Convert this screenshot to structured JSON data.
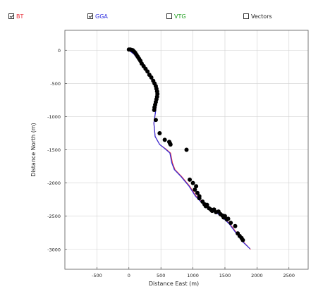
{
  "toggles": [
    {
      "label": "BT",
      "checked": true,
      "color": "#e8303a"
    },
    {
      "label": "GGA",
      "checked": true,
      "color": "#3030e0"
    },
    {
      "label": "VTG",
      "checked": false,
      "color": "#22a022"
    },
    {
      "label": "Vectors",
      "checked": false,
      "color": "#222222"
    }
  ],
  "chart_data": {
    "type": "scatter",
    "title": "",
    "xlabel": "Distance East (m)",
    "ylabel": "Distance North (m)",
    "xlim": [
      -1000,
      2800
    ],
    "ylim": [
      -3300,
      300
    ],
    "xticks": [
      -500,
      0,
      500,
      1000,
      1500,
      2000,
      2500
    ],
    "yticks": [
      0,
      -500,
      -1000,
      -1500,
      -2000,
      -2500,
      -3000
    ],
    "grid": true,
    "series": [
      {
        "type": "line",
        "color": "#e8303a",
        "x": [
          0,
          80,
          200,
          320,
          400,
          440,
          420,
          390,
          410,
          480,
          580,
          650,
          680,
          720,
          820,
          950,
          1050,
          1150,
          1300,
          1450,
          1580,
          1680,
          1780,
          1900
        ],
        "y": [
          0,
          -60,
          -220,
          -380,
          -520,
          -700,
          -900,
          -1100,
          -1300,
          -1420,
          -1490,
          -1550,
          -1700,
          -1800,
          -1900,
          -2050,
          -2200,
          -2300,
          -2400,
          -2500,
          -2620,
          -2750,
          -2880,
          -3000
        ]
      },
      {
        "type": "line",
        "color": "#3030e0",
        "x": [
          0,
          80,
          200,
          320,
          400,
          440,
          420,
          390,
          410,
          480,
          570,
          640,
          670,
          710,
          810,
          940,
          1040,
          1140,
          1290,
          1440,
          1570,
          1670,
          1770,
          1890
        ],
        "y": [
          0,
          -60,
          -220,
          -380,
          -520,
          -700,
          -900,
          -1100,
          -1300,
          -1420,
          -1490,
          -1550,
          -1700,
          -1800,
          -1900,
          -2050,
          -2200,
          -2300,
          -2400,
          -2500,
          -2620,
          -2750,
          -2880,
          -2990
        ]
      },
      {
        "type": "scatter",
        "color": "#000000",
        "x": [
          0,
          20,
          40,
          60,
          80,
          100,
          120,
          140,
          160,
          180,
          200,
          230,
          260,
          290,
          320,
          350,
          380,
          400,
          420,
          430,
          440,
          445,
          440,
          430,
          420,
          410,
          400,
          395,
          420,
          480,
          560,
          630,
          640,
          650,
          900,
          950,
          1000,
          1030,
          1050,
          1070,
          1100,
          1100,
          1150,
          1180,
          1200,
          1220,
          1250,
          1280,
          1300,
          1330,
          1360,
          1400,
          1430,
          1460,
          1480,
          1500,
          1530,
          1550,
          1590,
          1660,
          1700,
          1730,
          1760,
          1780
        ],
        "y": [
          10,
          10,
          5,
          0,
          -20,
          -40,
          -70,
          -100,
          -130,
          -160,
          -200,
          -240,
          -280,
          -320,
          -370,
          -410,
          -460,
          -500,
          -540,
          -580,
          -620,
          -660,
          -700,
          -740,
          -780,
          -820,
          -860,
          -900,
          -1050,
          -1250,
          -1350,
          -1380,
          -1400,
          -1420,
          -1500,
          -1950,
          -2000,
          -2100,
          -2050,
          -2150,
          -2200,
          -2230,
          -2280,
          -2320,
          -2350,
          -2330,
          -2380,
          -2400,
          -2420,
          -2400,
          -2440,
          -2430,
          -2470,
          -2490,
          -2520,
          -2500,
          -2550,
          -2540,
          -2600,
          -2650,
          -2760,
          -2800,
          -2830,
          -2860
        ]
      }
    ]
  }
}
